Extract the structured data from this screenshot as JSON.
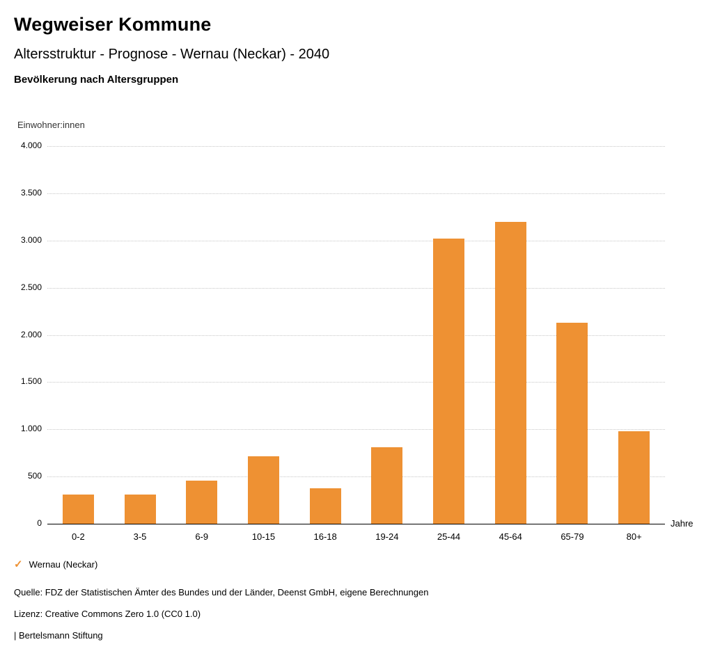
{
  "header": {
    "title": "Wegweiser Kommune",
    "subtitle": "Altersstruktur - Prognose - Wernau (Neckar) - 2040",
    "section": "Bevölkerung nach Altersgruppen"
  },
  "chart_data": {
    "type": "bar",
    "title": "Bevölkerung nach Altersgruppen",
    "ylabel": "Einwohner:innen",
    "xlabel": "Jahre",
    "categories": [
      "0-2",
      "3-5",
      "6-9",
      "10-15",
      "16-18",
      "19-24",
      "25-44",
      "45-64",
      "65-79",
      "80+"
    ],
    "series": [
      {
        "name": "Wernau (Neckar)",
        "values": [
          310,
          310,
          455,
          715,
          375,
          810,
          3020,
          3200,
          2130,
          980
        ]
      }
    ],
    "ylim": [
      0,
      4000
    ],
    "ytick_step": 500,
    "ytick_labels": [
      "0",
      "500",
      "1.000",
      "1.500",
      "2.000",
      "2.500",
      "3.000",
      "3.500",
      "4.000"
    ],
    "grid": "horizontal-dotted",
    "legend_position": "bottom-left",
    "bar_color": "#EE9133"
  },
  "legend": {
    "marker": "✓",
    "label": "Wernau (Neckar)"
  },
  "footer": {
    "source": "Quelle: FDZ der Statistischen Ämter des Bundes und der Länder, Deenst GmbH, eigene Berechnungen",
    "license": "Lizenz: Creative Commons Zero 1.0 (CC0 1.0)",
    "brand": "| Bertelsmann Stiftung"
  }
}
